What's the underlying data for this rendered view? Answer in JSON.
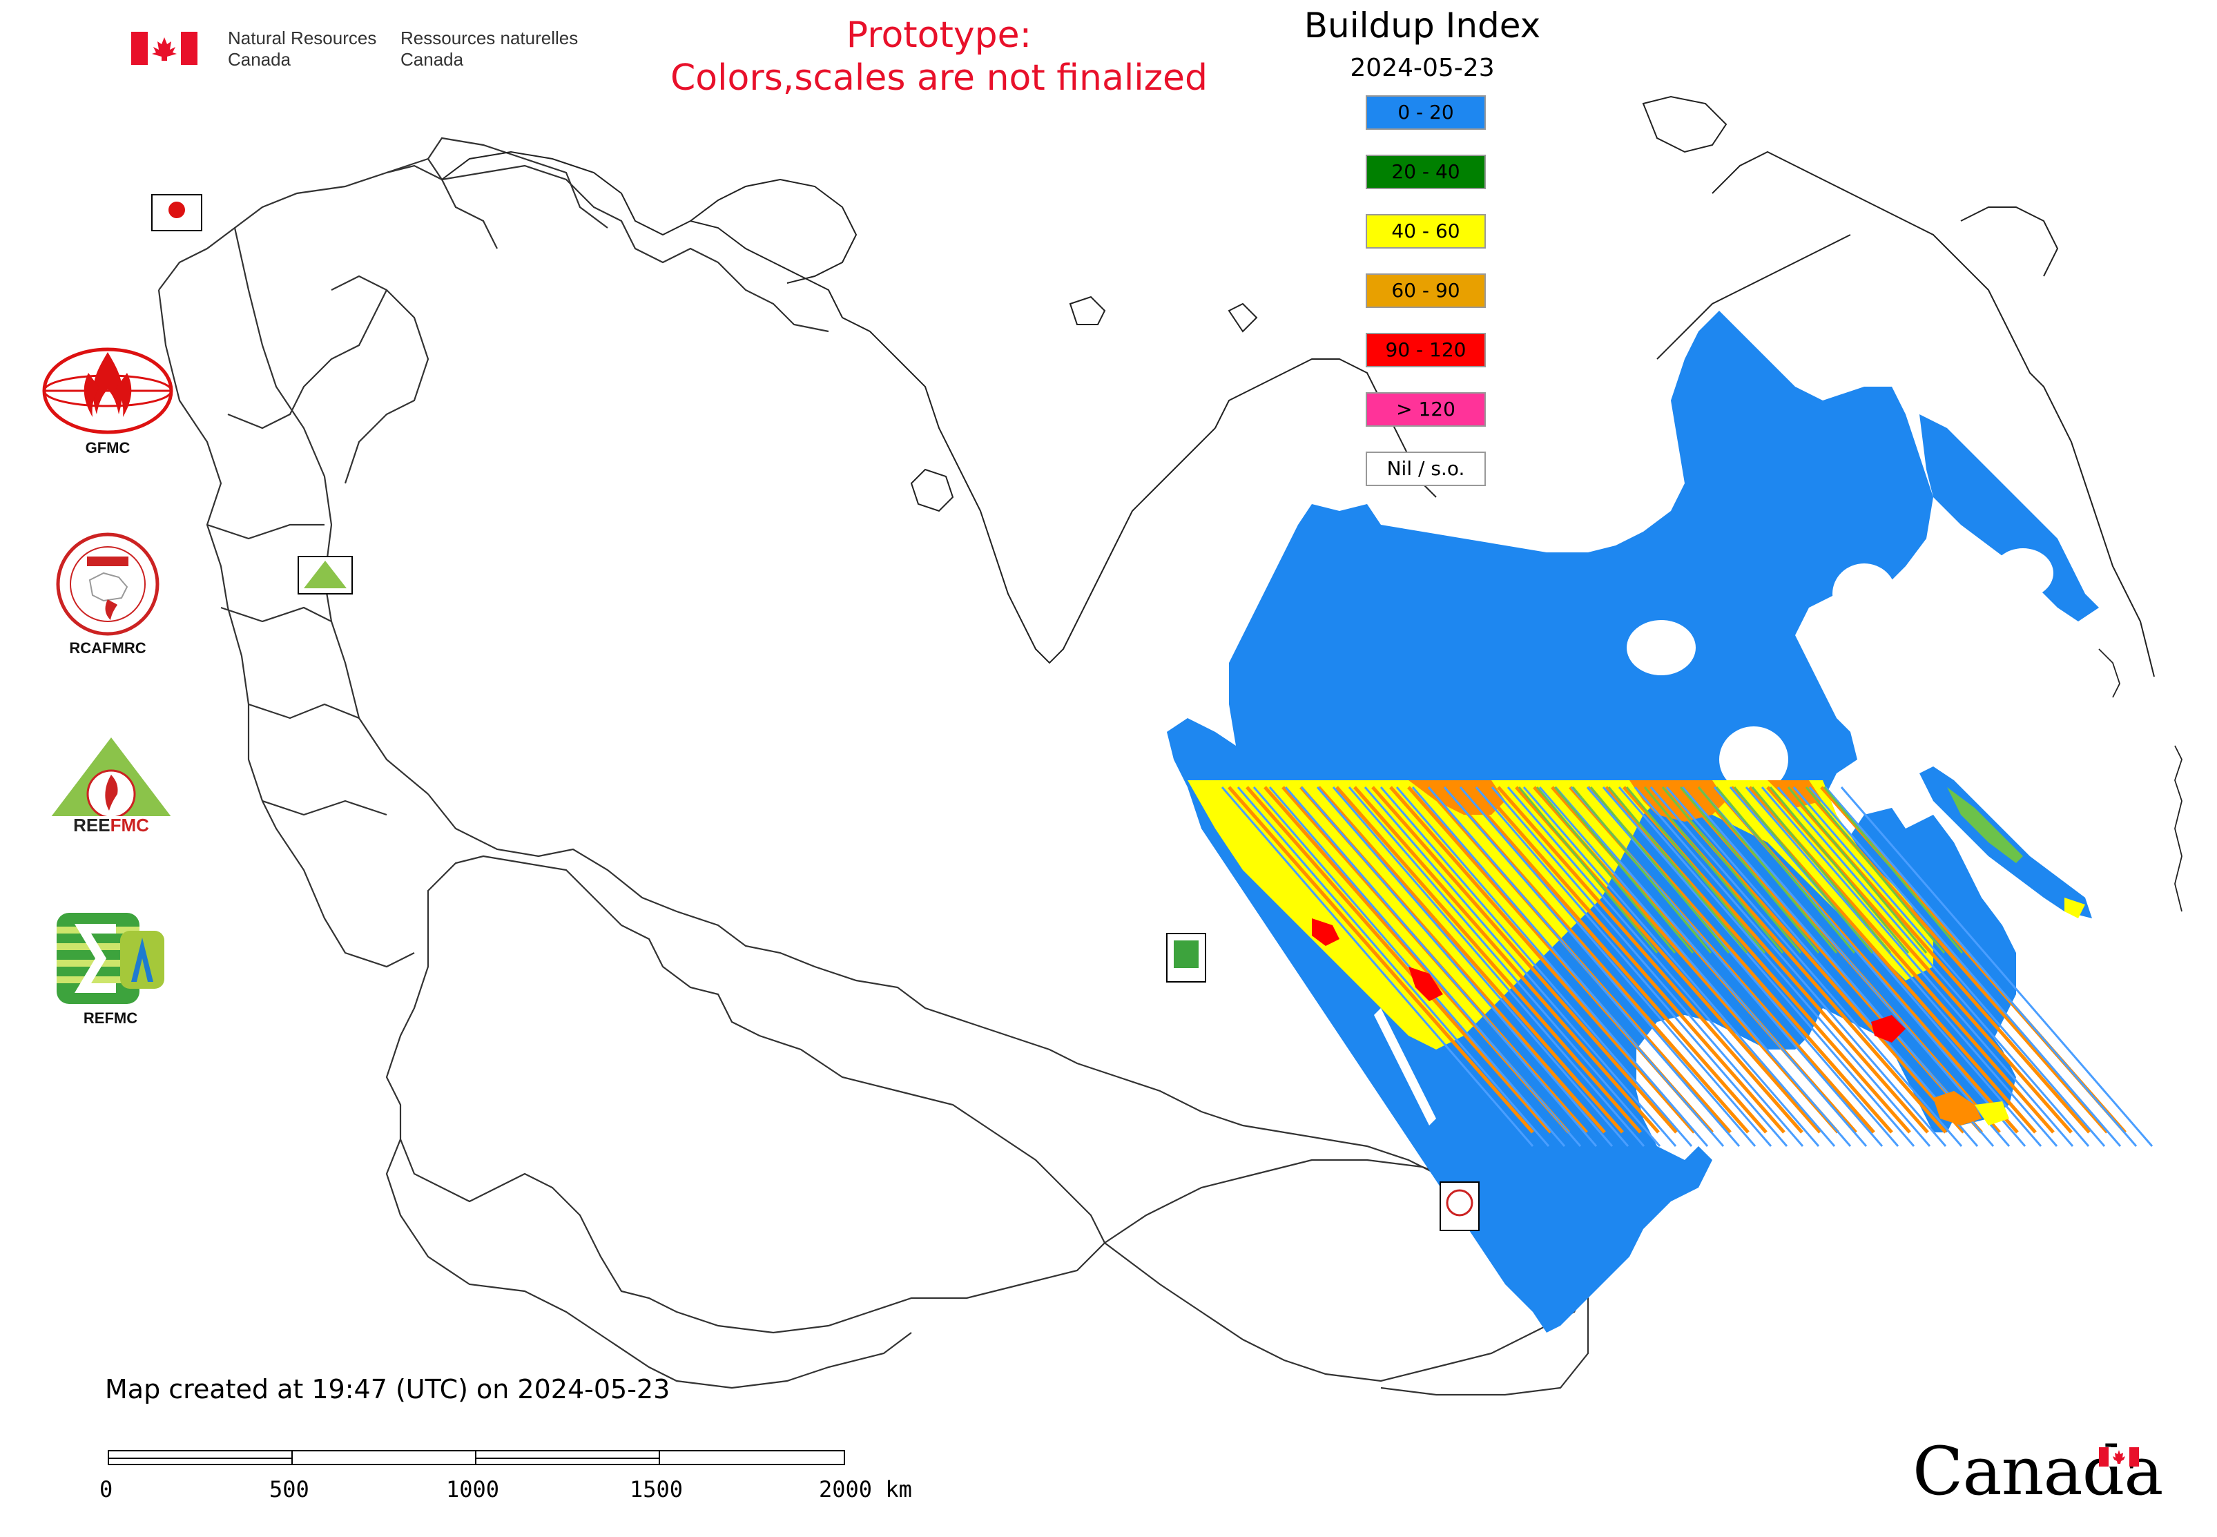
{
  "header": {
    "department_en": [
      "Natural Resources",
      "Canada"
    ],
    "department_fr": [
      "Ressources naturelles",
      "Canada"
    ]
  },
  "notice": {
    "line1": "Prototype:",
    "line2": "Colors,scales are not finalized"
  },
  "legend": {
    "title": "Buildup Index",
    "date": "2024-05-23",
    "items": [
      {
        "label": "0 - 20",
        "color": "#1e87f0"
      },
      {
        "label": "20 - 40",
        "color": "#008000"
      },
      {
        "label": "40 - 60",
        "color": "#ffff00"
      },
      {
        "label": "60 - 90",
        "color": "#e8a000"
      },
      {
        "label": "90 - 120",
        "color": "#ff0000"
      },
      {
        "label": "> 120",
        "color": "#ff3399"
      },
      {
        "label": "Nil / s.o.",
        "color": "#ffffff"
      }
    ]
  },
  "logos": [
    {
      "label": "GFMC",
      "icon": "gfmc-logo-icon"
    },
    {
      "label": "RCAFMRC",
      "icon": "rcafmrc-logo-icon"
    },
    {
      "label": "",
      "icon": "reefmc-logo-icon"
    },
    {
      "label": "REFMC",
      "icon": "refmc-logo-icon"
    }
  ],
  "footer": {
    "created": "Map created at 19:47 (UTC) on 2024-05-23",
    "scale_ticks": [
      "0",
      "500",
      "1000",
      "1500",
      "2000 km"
    ],
    "wordmark": "Canada"
  }
}
